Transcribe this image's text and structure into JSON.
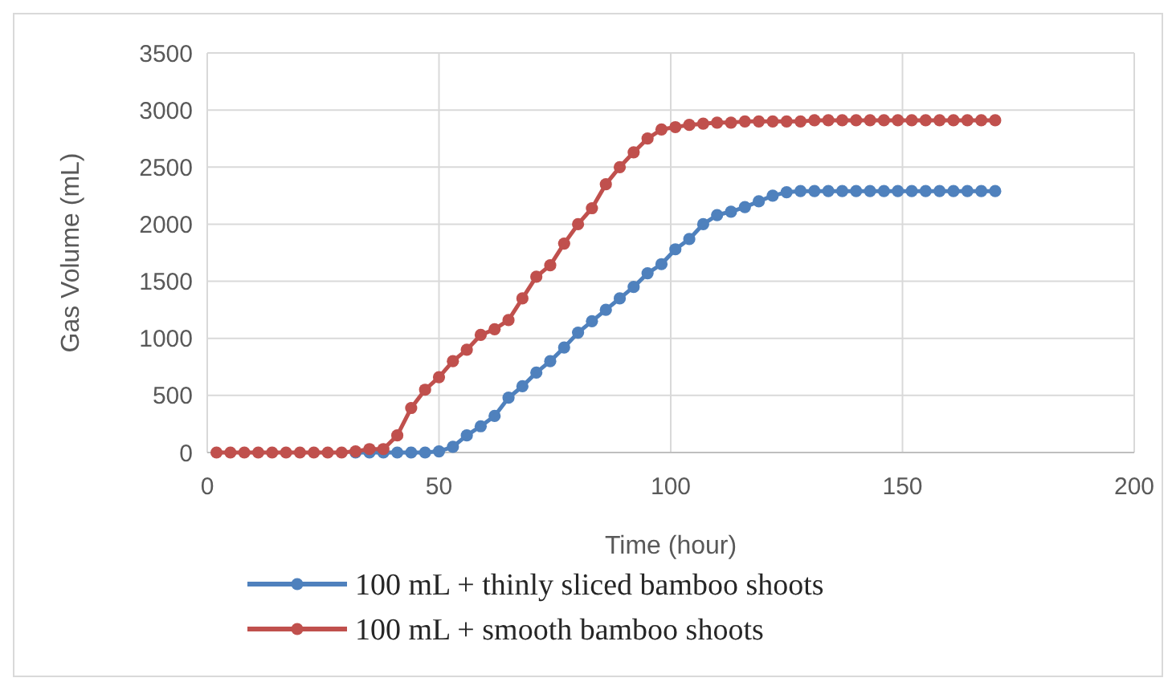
{
  "chart_data": {
    "type": "line",
    "xlabel": "Time (hour)",
    "ylabel": "Gas Volume (mL)",
    "xlim": [
      0,
      200
    ],
    "xticks": [
      0,
      50,
      100,
      150,
      200
    ],
    "ylim": [
      0,
      3500
    ],
    "yticks": [
      0,
      500,
      1000,
      1500,
      2000,
      2500,
      3000,
      3500
    ],
    "grid": true,
    "legend": "bottom",
    "marker": "circle",
    "line_style": "solid",
    "x": [
      2,
      5,
      8,
      11,
      14,
      17,
      20,
      23,
      26,
      29,
      32,
      35,
      38,
      41,
      44,
      47,
      50,
      53,
      56,
      59,
      62,
      65,
      68,
      71,
      74,
      77,
      80,
      83,
      86,
      89,
      92,
      95,
      98,
      101,
      104,
      107,
      110,
      113,
      116,
      119,
      122,
      125,
      128,
      131,
      134,
      137,
      140,
      143,
      146,
      149,
      152,
      155,
      158,
      161,
      164,
      167,
      170
    ],
    "series": [
      {
        "name": "100 mL + thinly sliced bamboo shoots",
        "color": "#4f81bd",
        "values": [
          null,
          null,
          null,
          null,
          null,
          null,
          null,
          null,
          null,
          null,
          0,
          0,
          0,
          0,
          0,
          0,
          10,
          50,
          150,
          230,
          320,
          480,
          580,
          700,
          800,
          920,
          1050,
          1150,
          1250,
          1350,
          1450,
          1570,
          1650,
          1780,
          1870,
          2000,
          2080,
          2110,
          2150,
          2200,
          2250,
          2280,
          2290,
          2290,
          2290,
          2290,
          2290,
          2290,
          2290,
          2290,
          2290,
          2290,
          2290,
          2290,
          2290,
          2290,
          2290
        ]
      },
      {
        "name": "100 mL + smooth bamboo shoots",
        "color": "#c0504d",
        "values": [
          0,
          0,
          0,
          0,
          0,
          0,
          0,
          0,
          0,
          0,
          10,
          30,
          30,
          150,
          390,
          550,
          660,
          800,
          900,
          1030,
          1080,
          1160,
          1350,
          1540,
          1640,
          1830,
          2000,
          2140,
          2350,
          2500,
          2630,
          2750,
          2830,
          2850,
          2870,
          2880,
          2890,
          2890,
          2900,
          2900,
          2900,
          2900,
          2900,
          2910,
          2910,
          2910,
          2910,
          2910,
          2910,
          2910,
          2910,
          2910,
          2910,
          2910,
          2910,
          2910,
          2910
        ]
      }
    ]
  }
}
